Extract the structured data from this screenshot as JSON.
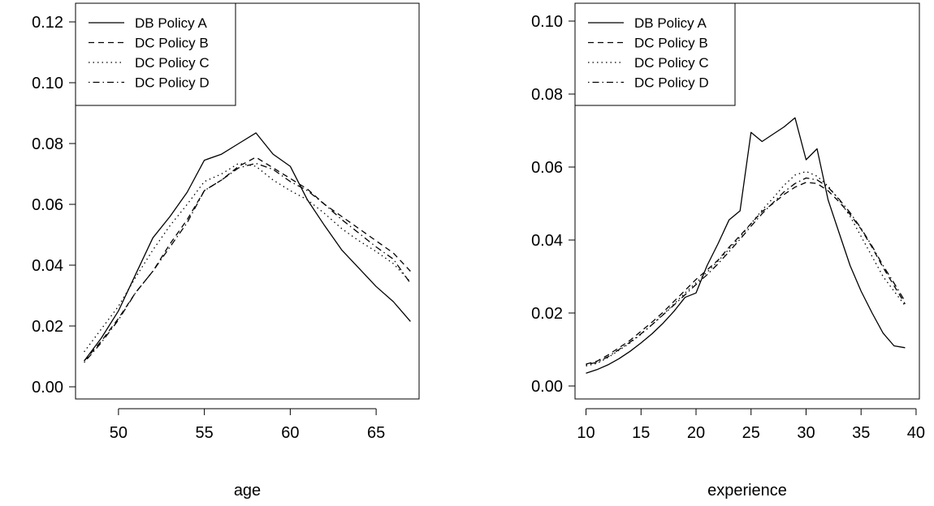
{
  "chart_data": [
    {
      "type": "line",
      "title": "",
      "xlabel": "age",
      "ylabel": "",
      "xlim": [
        47.5,
        67.5
      ],
      "ylim": [
        0.0,
        0.12
      ],
      "xticks": [
        50,
        55,
        60,
        65
      ],
      "yticks": [
        0.0,
        0.02,
        0.04,
        0.06,
        0.08,
        0.1,
        0.12
      ],
      "ytick_labels": [
        "0.00",
        "0.02",
        "0.04",
        "0.06",
        "0.08",
        "0.10",
        "0.12"
      ],
      "grid": false,
      "legend_position": "top-left",
      "x": [
        48,
        49,
        50,
        51,
        52,
        53,
        54,
        55,
        56,
        57,
        58,
        59,
        60,
        61,
        62,
        63,
        64,
        65,
        66,
        67
      ],
      "series": [
        {
          "name": "DB Policy A",
          "dash": "solid",
          "values": [
            0.0085,
            0.016,
            0.025,
            0.037,
            0.049,
            0.056,
            0.064,
            0.0745,
            0.0765,
            0.08,
            0.0835,
            0.0765,
            0.0725,
            0.0615,
            0.053,
            0.045,
            0.039,
            0.033,
            0.028,
            0.0215
          ]
        },
        {
          "name": "DC Policy B",
          "dash": "dashed",
          "values": [
            0.0085,
            0.015,
            0.0225,
            0.031,
            0.038,
            0.047,
            0.055,
            0.0645,
            0.068,
            0.0725,
            0.0755,
            0.072,
            0.0685,
            0.065,
            0.06,
            0.056,
            0.052,
            0.048,
            0.044,
            0.038
          ]
        },
        {
          "name": "DC Policy C",
          "dash": "dotted",
          "values": [
            0.0115,
            0.019,
            0.0265,
            0.036,
            0.045,
            0.053,
            0.06,
            0.0675,
            0.07,
            0.0735,
            0.0725,
            0.068,
            0.0645,
            0.0615,
            0.057,
            0.052,
            0.048,
            0.0445,
            0.0405,
            0.0345
          ]
        },
        {
          "name": "DC Policy D",
          "dash": "dashdot",
          "values": [
            0.008,
            0.0145,
            0.022,
            0.031,
            0.038,
            0.046,
            0.054,
            0.0645,
            0.068,
            0.072,
            0.0735,
            0.0715,
            0.0675,
            0.0645,
            0.06,
            0.055,
            0.0505,
            0.046,
            0.042,
            0.034
          ]
        }
      ]
    },
    {
      "type": "line",
      "title": "",
      "xlabel": "experience",
      "ylabel": "",
      "xlim": [
        9,
        40.3
      ],
      "ylim": [
        0.0,
        0.1
      ],
      "xticks": [
        10,
        15,
        20,
        25,
        30,
        35,
        40
      ],
      "yticks": [
        0.0,
        0.02,
        0.04,
        0.06,
        0.08,
        0.1
      ],
      "ytick_labels": [
        "0.00",
        "0.02",
        "0.04",
        "0.06",
        "0.08",
        "0.10"
      ],
      "grid": false,
      "legend_position": "top-left",
      "x": [
        10,
        11,
        12,
        13,
        14,
        15,
        16,
        17,
        18,
        19,
        20,
        21,
        22,
        23,
        24,
        25,
        26,
        27,
        28,
        29,
        30,
        31,
        32,
        33,
        34,
        35,
        36,
        37,
        38,
        39
      ],
      "series": [
        {
          "name": "DB Policy A",
          "dash": "solid",
          "values": [
            0.0035,
            0.0045,
            0.0058,
            0.0075,
            0.0095,
            0.0118,
            0.0143,
            0.0172,
            0.0205,
            0.0243,
            0.0255,
            0.033,
            0.039,
            0.0455,
            0.048,
            0.0695,
            0.067,
            0.069,
            0.071,
            0.0735,
            0.062,
            0.065,
            0.051,
            0.042,
            0.033,
            0.026,
            0.02,
            0.0145,
            0.011,
            0.0105
          ]
        },
        {
          "name": "DC Policy B",
          "dash": "dashed",
          "values": [
            0.006,
            0.0068,
            0.0085,
            0.0105,
            0.0125,
            0.015,
            0.0175,
            0.0202,
            0.0232,
            0.0262,
            0.0292,
            0.0318,
            0.0345,
            0.038,
            0.0412,
            0.0445,
            0.0478,
            0.05,
            0.0525,
            0.0545,
            0.0558,
            0.0555,
            0.0535,
            0.0505,
            0.047,
            0.043,
            0.038,
            0.0325,
            0.0275,
            0.0225
          ]
        },
        {
          "name": "DC Policy C",
          "dash": "dotted",
          "values": [
            0.0055,
            0.0062,
            0.0078,
            0.0098,
            0.0118,
            0.0142,
            0.0168,
            0.0196,
            0.0225,
            0.0255,
            0.0283,
            0.0312,
            0.0342,
            0.0375,
            0.0408,
            0.0445,
            0.0482,
            0.0515,
            0.055,
            0.0578,
            0.0588,
            0.0575,
            0.0548,
            0.051,
            0.0465,
            0.041,
            0.0355,
            0.03,
            0.026,
            0.022
          ]
        },
        {
          "name": "DC Policy D",
          "dash": "dashdot",
          "values": [
            0.0058,
            0.0065,
            0.008,
            0.01,
            0.012,
            0.0143,
            0.0168,
            0.0195,
            0.0222,
            0.025,
            0.0278,
            0.0305,
            0.0335,
            0.0368,
            0.0402,
            0.0438,
            0.0472,
            0.0502,
            0.0532,
            0.0555,
            0.057,
            0.0565,
            0.0545,
            0.0512,
            0.0475,
            0.0432,
            0.0383,
            0.033,
            0.0282,
            0.0232
          ]
        }
      ]
    }
  ]
}
